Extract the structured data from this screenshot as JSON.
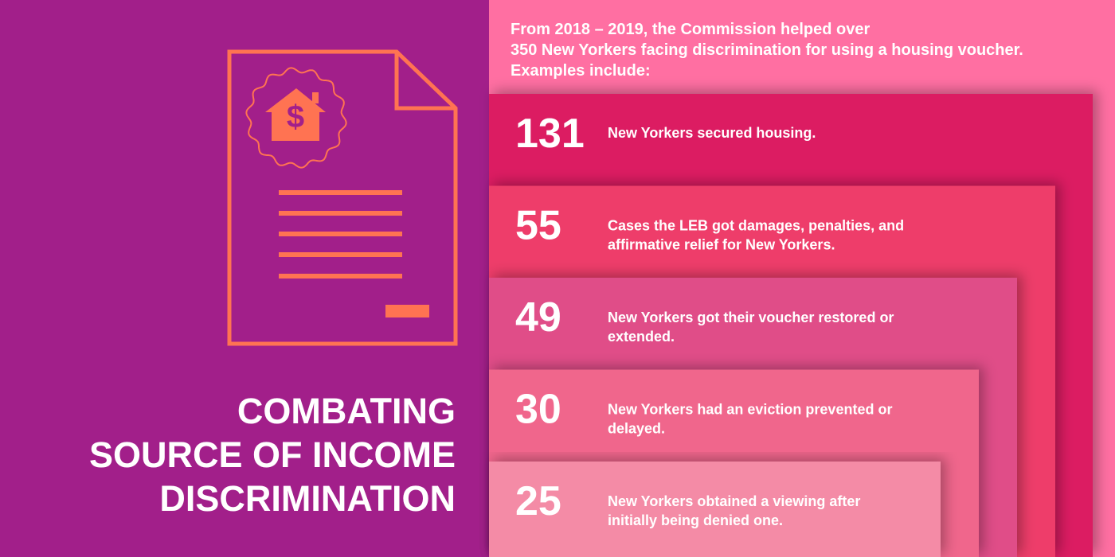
{
  "title": {
    "lines": [
      "COMBATING",
      "SOURCE OF INCOME",
      "DISCRIMINATION"
    ]
  },
  "intro": {
    "lines": [
      "From 2018 – 2019, the Commission helped over",
      "350 New Yorkers facing discrimination for using a housing voucher.",
      "Examples include:"
    ]
  },
  "stats": [
    {
      "number": "131",
      "lines": [
        "New Yorkers secured housing."
      ]
    },
    {
      "number": "55",
      "lines": [
        "Cases the LEB got damages, penalties, and",
        "affirmative relief for New Yorkers."
      ]
    },
    {
      "number": "49",
      "lines": [
        "New Yorkers got their voucher restored or",
        "extended."
      ]
    },
    {
      "number": "30",
      "lines": [
        "New Yorkers had an eviction prevented or",
        "delayed."
      ]
    },
    {
      "number": "25",
      "lines": [
        "New Yorkers obtained a viewing after",
        "initially being denied one."
      ]
    }
  ]
}
